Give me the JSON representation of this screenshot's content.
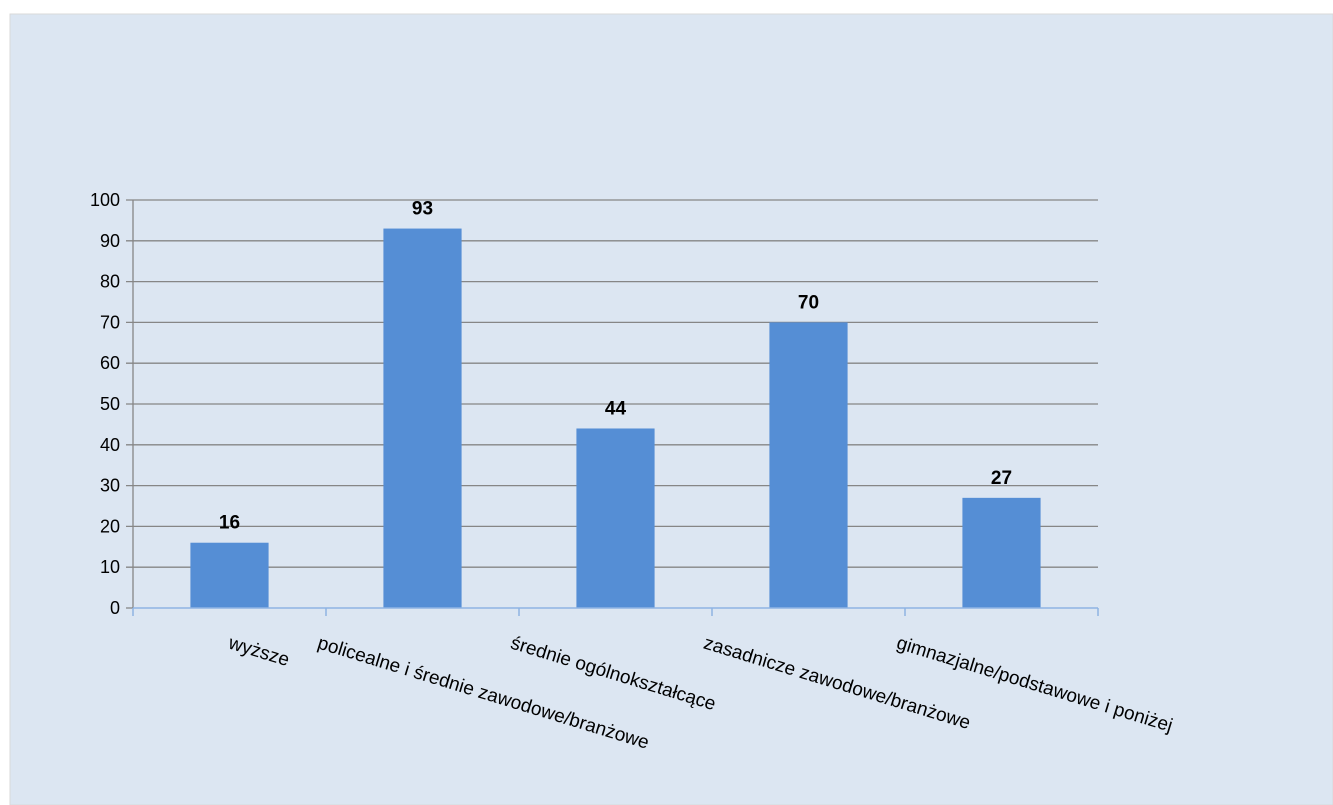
{
  "chart_data": {
    "type": "bar",
    "title": "",
    "xlabel": "",
    "ylabel": "",
    "categories": [
      "wyższe",
      "policealne i średnie zawodowe/branżowe",
      "średnie ogólnokształcące",
      "zasadnicze zawodowe/branżowe",
      "gimnazjalne/podstawowe i poniżej"
    ],
    "values": [
      16,
      93,
      44,
      70,
      27
    ],
    "ylim": [
      0,
      100
    ],
    "yticks": [
      0,
      10,
      20,
      30,
      40,
      50,
      60,
      70,
      80,
      90,
      100
    ],
    "grid": true,
    "legend": false,
    "data_labels": true
  },
  "colors": {
    "background": "#dce6f2",
    "bar": "#558ed5",
    "gridline": "#868686",
    "axis": "#8eb4e3"
  }
}
